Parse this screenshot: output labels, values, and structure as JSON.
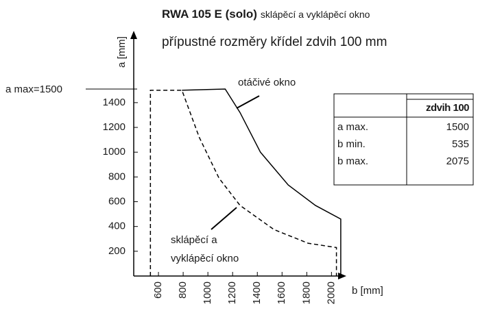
{
  "chart_data": {
    "type": "line",
    "title": "RWA 105 E (solo)",
    "title_suffix": "sklápěcí a vyklápěcí okno",
    "subtitle": "přípustné rozměry křídel zdvih 100 mm",
    "y_label": "a [mm]",
    "x_label": "b [mm]",
    "xlim": [
      400,
      2120
    ],
    "ylim": [
      0,
      1980
    ],
    "xticks": [
      600,
      800,
      1000,
      1200,
      1400,
      1600,
      1800,
      2000
    ],
    "yticks": [
      200,
      400,
      600,
      800,
      1000,
      1200,
      1400
    ],
    "series": [
      {
        "name": "otáčivé okno",
        "color": "#000000",
        "dashed": false,
        "x": [
          790,
          1140,
          1260,
          1425,
          1650,
          1870,
          2075,
          2075
        ],
        "values": [
          1500,
          1510,
          1320,
          1000,
          735,
          570,
          460,
          0
        ]
      },
      {
        "name": "sklápěcí a vyklápěcí okno",
        "color": "#000000",
        "dashed": true,
        "x": [
          535,
          535,
          790,
          930,
          1090,
          1260,
          1535,
          1810,
          2040,
          2040
        ],
        "values": [
          0,
          1500,
          1500,
          1120,
          790,
          570,
          375,
          265,
          230,
          0
        ]
      }
    ],
    "annotations": [
      "a max=1500",
      "otáčivé okno",
      "sklápěcí a",
      "vyklápěcí okno"
    ]
  },
  "table": {
    "header": [
      "",
      "zdvih 100"
    ],
    "rows": [
      [
        "a max.",
        "1500"
      ],
      [
        "b min.",
        "535"
      ],
      [
        "b max.",
        "2075"
      ]
    ]
  }
}
